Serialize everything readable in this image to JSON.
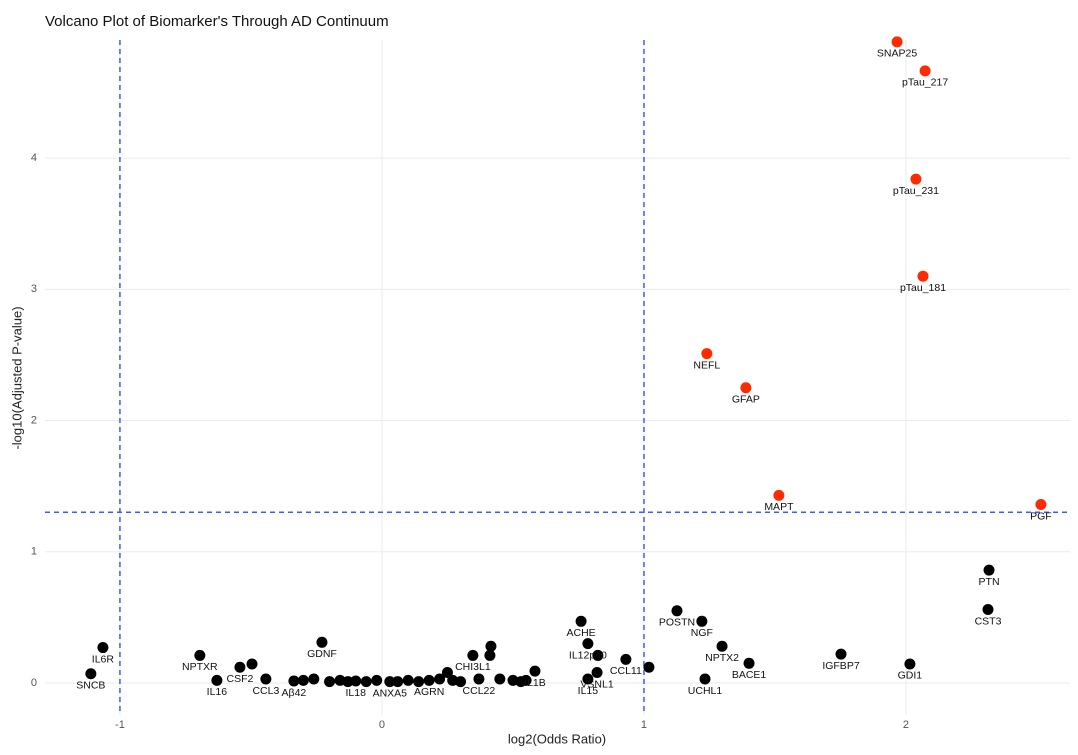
{
  "chart_data": {
    "type": "scatter",
    "title": "Volcano Plot of Biomarker's Through AD Continuum",
    "x_label": "log2(Odds Ratio)",
    "y_label": "-log10(Adjusted P-value)",
    "xlim": [
      -1.286,
      2.626
    ],
    "ylim": [
      -0.244,
      4.9
    ],
    "xticks": [
      -1,
      0,
      1,
      2
    ],
    "yticks": [
      0,
      1,
      2,
      3,
      4
    ],
    "grid": true,
    "thresholds": {
      "x": [
        -1,
        1
      ],
      "y": 1.301,
      "color": "#3b5bff"
    },
    "significant_color": "#ff2a00",
    "other_color": "#000000",
    "x": [
      1.966,
      2.073,
      2.038,
      2.065,
      1.24,
      1.389,
      1.515,
      2.515,
      2.317,
      2.313,
      2.015,
      1.752,
      1.401,
      1.233,
      1.298,
      1.221,
      1.126,
      0.931,
      1.019,
      0.821,
      0.786,
      0.786,
      0.824,
      0.76,
      0.347,
      0.416,
      0.412,
      0.37,
      0.584,
      0.55,
      -0.229,
      -1.065,
      -1.111,
      -0.695,
      -0.542,
      -0.496,
      -0.63,
      -0.443,
      -0.336,
      -0.1,
      0.03,
      0.18,
      -0.3,
      -0.26,
      -0.2,
      -0.16,
      -0.13,
      -0.06,
      -0.02,
      0.06,
      0.1,
      0.14,
      0.22,
      0.25,
      0.27,
      0.3,
      0.45,
      0.5,
      0.53
    ],
    "values": [
      4.886,
      4.665,
      3.84,
      3.1,
      2.51,
      2.25,
      1.43,
      1.36,
      0.86,
      0.56,
      0.145,
      0.22,
      0.15,
      0.03,
      0.28,
      0.47,
      0.55,
      0.18,
      0.12,
      0.08,
      0.03,
      0.3,
      0.21,
      0.47,
      0.21,
      0.28,
      0.21,
      0.03,
      0.09,
      0.02,
      0.31,
      0.27,
      0.07,
      0.21,
      0.12,
      0.145,
      0.02,
      0.03,
      0.015,
      0.015,
      0.01,
      0.02,
      0.02,
      0.03,
      0.01,
      0.02,
      0.01,
      0.01,
      0.02,
      0.01,
      0.02,
      0.01,
      0.03,
      0.08,
      0.02,
      0.01,
      0.03,
      0.02,
      0.01
    ],
    "labels": [
      "SNAP25",
      "pTau_217",
      "pTau_231",
      "pTau_181",
      "NEFL",
      "GFAP",
      "MAPT",
      "PGF",
      "PTN",
      "CST3",
      "GDI1",
      "IGFBP7",
      "BACE1",
      "UCHL1",
      "NPTX2",
      "NGF",
      "POSTN",
      "CCL11",
      null,
      "VSNL1",
      "IL15",
      "IL12p40",
      null,
      "ACHE",
      "CHI3L1",
      null,
      null,
      "CCL22",
      "IL1B",
      null,
      "GDNF",
      "IL6R",
      "SNCB",
      "NPTXR",
      "CSF2",
      null,
      "IL16",
      "CCL3",
      "Aβ42",
      "IL18",
      "ANXA5",
      "AGRN",
      null,
      null,
      null,
      null,
      null,
      null,
      null,
      null,
      null,
      null,
      null,
      null,
      null,
      null,
      null,
      null,
      null
    ]
  }
}
